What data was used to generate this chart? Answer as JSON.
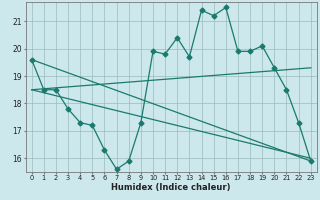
{
  "title": "",
  "xlabel": "Humidex (Indice chaleur)",
  "bg_color": "#cce8ec",
  "line_color": "#1a7a6e",
  "grid_color": "#99bbbb",
  "xlim": [
    -0.5,
    23.5
  ],
  "ylim": [
    15.5,
    21.7
  ],
  "yticks": [
    16,
    17,
    18,
    19,
    20,
    21
  ],
  "xticks": [
    0,
    1,
    2,
    3,
    4,
    5,
    6,
    7,
    8,
    9,
    10,
    11,
    12,
    13,
    14,
    15,
    16,
    17,
    18,
    19,
    20,
    21,
    22,
    23
  ],
  "series1_x": [
    0,
    1,
    2,
    3,
    4,
    5,
    6,
    7,
    8,
    9,
    10,
    11,
    12,
    13,
    14,
    15,
    16,
    17,
    18,
    19,
    20,
    21,
    22,
    23
  ],
  "series1_y": [
    19.6,
    18.5,
    18.5,
    17.8,
    17.3,
    17.2,
    16.3,
    15.6,
    15.9,
    17.3,
    19.9,
    19.8,
    20.4,
    19.7,
    21.4,
    21.2,
    21.5,
    19.9,
    19.9,
    20.1,
    19.3,
    18.5,
    17.3,
    15.9
  ],
  "series2_x": [
    0,
    23
  ],
  "series2_y": [
    19.6,
    15.9
  ],
  "series3_x": [
    0,
    23
  ],
  "series3_y": [
    18.5,
    19.3
  ],
  "series4_x": [
    0,
    23
  ],
  "series4_y": [
    18.5,
    16.0
  ]
}
